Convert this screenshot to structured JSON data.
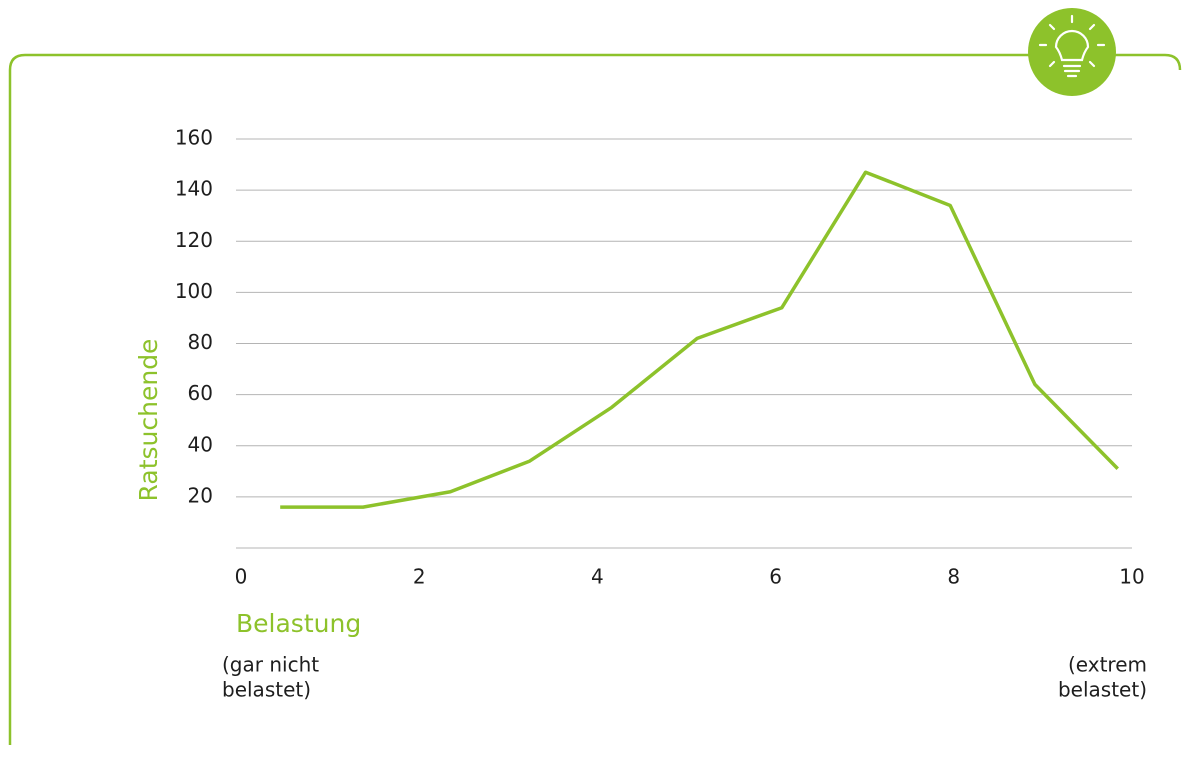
{
  "chart_data": {
    "type": "line",
    "x_label": "Belastung",
    "y_label": "Ratsuchende",
    "annotations": [
      [
        "(gar nicht",
        "belastet)"
      ],
      [
        "(extrem",
        "belastet)"
      ]
    ],
    "x": [
      0.44,
      1.37,
      2.35,
      3.24,
      4.16,
      5.12,
      6.07,
      7.01,
      7.96,
      8.91,
      9.84
    ],
    "series": [
      {
        "color": "#8dc22b",
        "values": [
          16,
          16,
          22,
          34,
          55,
          82,
          94,
          147,
          134,
          64,
          31
        ]
      }
    ],
    "xlim": [
      0,
      10
    ],
    "xticks": [
      0,
      2,
      4,
      6,
      8,
      10
    ],
    "ylim": [
      0,
      160
    ],
    "yticks": [
      20,
      40,
      60,
      80,
      100,
      120,
      140,
      160
    ],
    "grid": true
  }
}
